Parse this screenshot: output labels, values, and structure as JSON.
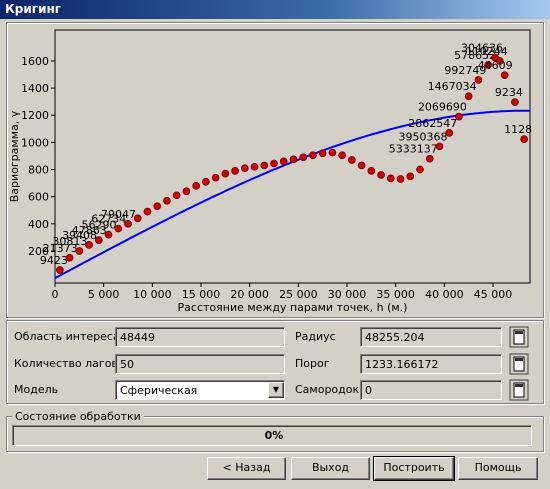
{
  "window": {
    "title": "Кригинг"
  },
  "chart_data": {
    "type": "scatter",
    "y_label": "Вариограмма, γ",
    "x_label": "Расстояние между парами точек, h (м.)",
    "x": [
      500,
      1500,
      2500,
      3500,
      4500,
      5500,
      6500,
      7500,
      8500,
      9500,
      10500,
      11500,
      12500,
      13500,
      14500,
      15500,
      16500,
      17500,
      18500,
      19500,
      20500,
      21500,
      22500,
      23500,
      24500,
      25500,
      26500,
      27500,
      28500,
      29500,
      30500,
      31500,
      32500,
      33500,
      34500,
      35500,
      36500,
      37500,
      38500,
      39500,
      40500,
      41500,
      42500,
      43500,
      44500,
      45200,
      45700,
      46200,
      47250,
      48200
    ],
    "values": [
      60,
      150,
      200,
      245,
      280,
      320,
      365,
      400,
      440,
      490,
      530,
      570,
      610,
      640,
      680,
      710,
      740,
      770,
      790,
      810,
      820,
      830,
      845,
      860,
      875,
      890,
      905,
      920,
      925,
      905,
      870,
      830,
      790,
      760,
      735,
      730,
      750,
      800,
      880,
      970,
      1070,
      1190,
      1340,
      1460,
      1570,
      1625,
      1600,
      1495,
      1297,
      1024
    ],
    "point_labels": [
      "9423",
      "21373",
      "30813",
      "39408",
      "47863",
      "56290",
      "62734",
      "79047",
      null,
      null,
      null,
      null,
      null,
      null,
      null,
      null,
      null,
      null,
      null,
      null,
      null,
      null,
      null,
      null,
      null,
      null,
      null,
      null,
      null,
      null,
      null,
      null,
      null,
      null,
      null,
      null,
      null,
      null,
      "5333137",
      "3950368",
      "2862547",
      "2069690",
      "1467034",
      "992749",
      "578652",
      "304636",
      "110244",
      "44609",
      "9234",
      "1128"
    ],
    "color": "#cc0000",
    "model_color": "#0000ff",
    "xlim": [
      0,
      48800
    ],
    "ylim": [
      -36,
      1828
    ],
    "xticks": [
      0,
      {
        "value": 5000,
        "label": "5 000"
      },
      {
        "value": 10000,
        "label": "10 000"
      },
      {
        "value": 15000,
        "label": "15 000"
      },
      {
        "value": 20000,
        "label": "20 000"
      },
      {
        "value": 25000,
        "label": "25 000"
      },
      {
        "value": 30000,
        "label": "30 000"
      },
      {
        "value": 35000,
        "label": "35 000"
      },
      {
        "value": 40000,
        "label": "40 000"
      },
      {
        "value": 45000,
        "label": "45 000"
      }
    ],
    "yticks": [
      200,
      400,
      600,
      800,
      1000,
      1200,
      1400,
      1600
    ]
  },
  "form": {
    "area_label": "Область интереса",
    "area": 48449,
    "lags_label": "Количество лагов",
    "lags": 50,
    "model_label": "Модель",
    "model": "Сферическая",
    "radius_label": "Радиус",
    "radius": 48255.204,
    "sill_label": "Порог",
    "sill": 1233.166172,
    "nugget_label": "Самородок",
    "nugget": 0
  },
  "status": {
    "title": "Состояние обработки",
    "progress": "0%"
  },
  "buttons": [
    "< Назад",
    "Выход",
    "Построить",
    "Помощь"
  ]
}
